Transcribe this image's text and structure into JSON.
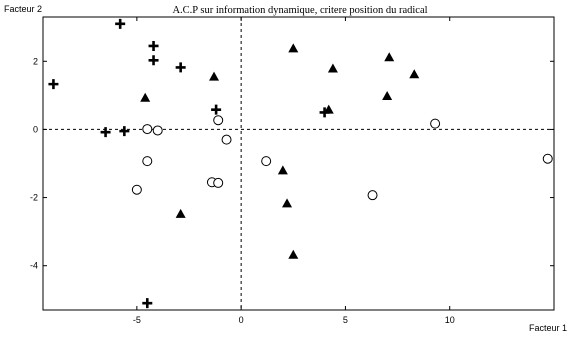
{
  "chart_data": {
    "type": "scatter",
    "title": "A.C.P sur information dynamique, critere position du radical",
    "xlabel": "Facteur 1",
    "ylabel": "Facteur 2",
    "xlim": [
      -9.5,
      15
    ],
    "ylim": [
      -5.3,
      3.3
    ],
    "xticks": [
      -5,
      0,
      5,
      10
    ],
    "yticks": [
      -4,
      -2,
      0,
      2
    ],
    "reference_lines": {
      "x": 0,
      "y": 0,
      "style": "dashed"
    },
    "grid": false,
    "colors": {
      "marker": "#000000",
      "axes": "#000000",
      "background": "#ffffff"
    },
    "series": [
      {
        "marker": "plus",
        "points": [
          {
            "x": -5.8,
            "y": 3.1
          },
          {
            "x": -4.2,
            "y": 2.45
          },
          {
            "x": -4.2,
            "y": 2.03
          },
          {
            "x": -2.9,
            "y": 1.82
          },
          {
            "x": -9.0,
            "y": 1.33
          },
          {
            "x": -1.2,
            "y": 0.58
          },
          {
            "x": 4.0,
            "y": 0.5
          },
          {
            "x": -6.5,
            "y": -0.08
          },
          {
            "x": -5.6,
            "y": -0.05
          },
          {
            "x": -4.5,
            "y": -5.1
          }
        ]
      },
      {
        "marker": "triangle",
        "points": [
          {
            "x": 2.5,
            "y": 2.38
          },
          {
            "x": 7.1,
            "y": 2.12
          },
          {
            "x": 4.4,
            "y": 1.79
          },
          {
            "x": 8.3,
            "y": 1.62
          },
          {
            "x": -1.3,
            "y": 1.55
          },
          {
            "x": -4.6,
            "y": 0.93
          },
          {
            "x": 7.0,
            "y": 0.98
          },
          {
            "x": 4.2,
            "y": 0.58
          },
          {
            "x": 2.0,
            "y": -1.2
          },
          {
            "x": 2.2,
            "y": -2.17
          },
          {
            "x": -2.9,
            "y": -2.48
          },
          {
            "x": 2.5,
            "y": -3.68
          }
        ]
      },
      {
        "marker": "circle",
        "points": [
          {
            "x": -1.1,
            "y": 0.27
          },
          {
            "x": 9.3,
            "y": 0.17
          },
          {
            "x": -4.5,
            "y": 0.01
          },
          {
            "x": -4.0,
            "y": -0.03
          },
          {
            "x": -0.7,
            "y": -0.3
          },
          {
            "x": 1.2,
            "y": -0.93
          },
          {
            "x": -4.5,
            "y": -0.93
          },
          {
            "x": 14.7,
            "y": -0.86
          },
          {
            "x": -1.4,
            "y": -1.55
          },
          {
            "x": -1.1,
            "y": -1.57
          },
          {
            "x": -5.0,
            "y": -1.77
          },
          {
            "x": 6.3,
            "y": -1.93
          }
        ]
      }
    ]
  }
}
